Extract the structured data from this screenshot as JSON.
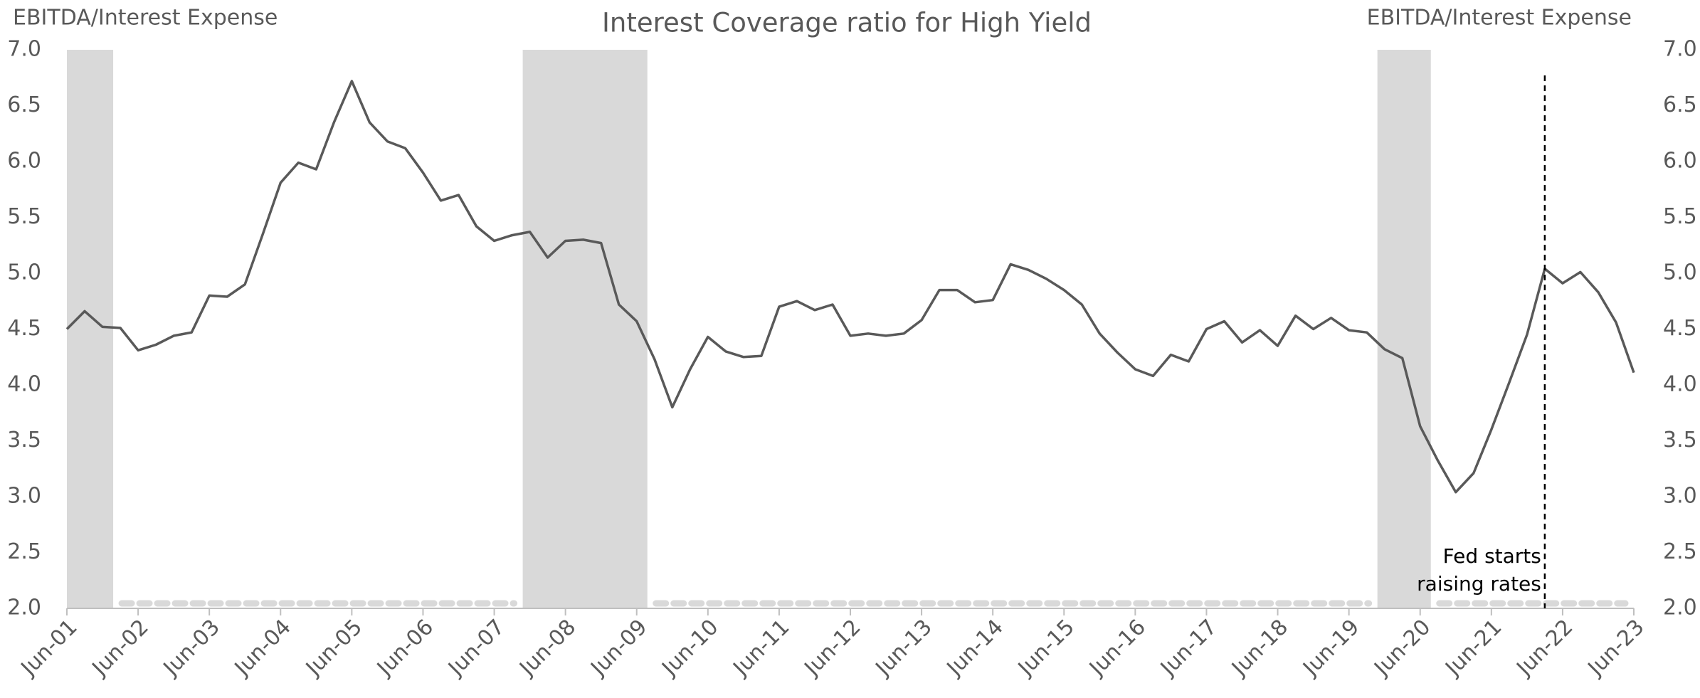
{
  "chart_data": {
    "type": "line",
    "title": "Interest Coverage ratio for High Yield",
    "y_label": "EBITDA/Interest Expense",
    "y2_label": "EBITDA/Interest Expense",
    "categories": [
      "Jun-01",
      null,
      null,
      null,
      "Jun-02",
      null,
      null,
      null,
      "Jun-03",
      null,
      null,
      null,
      "Jun-04",
      null,
      null,
      null,
      "Jun-05",
      null,
      null,
      null,
      "Jun-06",
      null,
      null,
      null,
      "Jun-07",
      null,
      null,
      null,
      "Jun-08",
      null,
      null,
      null,
      "Jun-09",
      null,
      null,
      null,
      "Jun-10",
      null,
      null,
      null,
      "Jun-11",
      null,
      null,
      null,
      "Jun-12",
      null,
      null,
      null,
      "Jun-13",
      null,
      null,
      null,
      "Jun-14",
      null,
      null,
      null,
      "Jun-15",
      null,
      null,
      null,
      "Jun-16",
      null,
      null,
      null,
      "Jun-17",
      null,
      null,
      null,
      "Jun-18",
      null,
      null,
      null,
      "Jun-19",
      null,
      null,
      null,
      "Jun-20",
      null,
      null,
      null,
      "Jun-21",
      null,
      null,
      null,
      "Jun-22",
      null,
      null,
      null,
      "Jun-23"
    ],
    "series": [
      {
        "name": "Interest Coverage",
        "color": "#595959",
        "values": [
          4.5,
          4.66,
          4.52,
          4.51,
          4.31,
          4.36,
          4.44,
          4.47,
          4.8,
          4.79,
          4.9,
          5.35,
          5.81,
          5.99,
          5.93,
          6.35,
          6.72,
          6.35,
          6.18,
          6.12,
          5.9,
          5.65,
          5.7,
          5.42,
          5.29,
          5.34,
          5.37,
          5.14,
          5.29,
          5.3,
          5.27,
          4.72,
          4.57,
          4.23,
          3.8,
          4.14,
          4.43,
          4.3,
          4.25,
          4.26,
          4.7,
          4.75,
          4.67,
          4.72,
          4.44,
          4.46,
          4.44,
          4.46,
          4.58,
          4.85,
          4.85,
          4.74,
          4.76,
          5.08,
          5.03,
          4.95,
          4.85,
          4.72,
          4.46,
          4.29,
          4.14,
          4.08,
          4.27,
          4.21,
          4.5,
          4.57,
          4.38,
          4.49,
          4.35,
          4.62,
          4.5,
          4.6,
          4.49,
          4.47,
          4.32,
          4.24,
          3.63,
          3.32,
          3.04,
          3.21,
          3.6,
          4.02,
          4.45,
          5.04,
          4.91,
          5.01,
          4.83,
          4.56,
          4.11
        ]
      }
    ],
    "shaded_regions": [
      [
        0,
        2.6
      ],
      [
        25.6,
        32.6
      ],
      [
        73.6,
        76.6
      ]
    ],
    "shade_color": "#d9d9d9",
    "annotation": {
      "x": 83,
      "lines": [
        "Fed starts",
        "raising rates"
      ]
    },
    "ylim": [
      2,
      7
    ],
    "yticks": [
      {
        "value": 2,
        "label": "2.0"
      },
      {
        "value": 2.5,
        "label": "2.5"
      },
      {
        "value": 3,
        "label": "3.0"
      },
      {
        "value": 3.5,
        "label": "3.5"
      },
      {
        "value": 4,
        "label": "4.0"
      },
      {
        "value": 4.5,
        "label": "4.5"
      },
      {
        "value": 5,
        "label": "5.0"
      },
      {
        "value": 5.5,
        "label": "5.5"
      },
      {
        "value": 6,
        "label": "6.0"
      },
      {
        "value": 6.5,
        "label": "6.5"
      },
      {
        "value": 7,
        "label": "7.0"
      }
    ],
    "y2lim": [
      2,
      7
    ],
    "y2ticks": [
      {
        "value": 2,
        "label": "2.0"
      },
      {
        "value": 2.5,
        "label": "2.5"
      },
      {
        "value": 3,
        "label": "3.0"
      },
      {
        "value": 3.5,
        "label": "3.5"
      },
      {
        "value": 4,
        "label": "4.0"
      },
      {
        "value": 4.5,
        "label": "4.5"
      },
      {
        "value": 5,
        "label": "5.0"
      },
      {
        "value": 5.5,
        "label": "5.5"
      },
      {
        "value": 6,
        "label": "6.0"
      },
      {
        "value": 6.5,
        "label": "6.5"
      },
      {
        "value": 7,
        "label": "7.0"
      }
    ],
    "grid": false
  }
}
